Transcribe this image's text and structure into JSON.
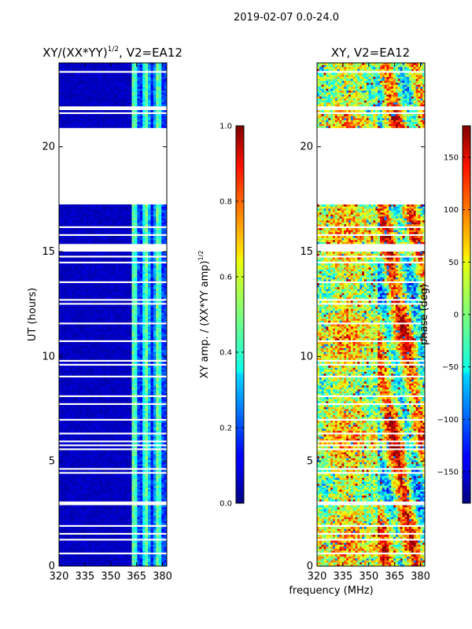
{
  "figure": {
    "suptitle": "2019-02-07 0.0-24.0",
    "xlabel": "frequency (MHz)"
  },
  "chart_data": [
    {
      "type": "heatmap",
      "title": "XY/(XX*YY)^{1/2}, V2=EA12",
      "title_main": "XY/(XX*YY)",
      "title_sup": "1/2",
      "title_rest": ", V2=EA12",
      "xlabel": "frequency (MHz)",
      "ylabel": "UT (hours)",
      "xlim": [
        320,
        382.5
      ],
      "ylim": [
        0,
        24
      ],
      "xticks": [
        320,
        335,
        350,
        365,
        380
      ],
      "yticks": [
        0,
        5,
        10,
        15,
        20
      ],
      "colormap": "jet",
      "colorbar": {
        "label_main": "XY amp. / (XX*YY amp)",
        "label_sup": "1/2",
        "range": [
          0.0,
          1.0
        ],
        "ticks": [
          "0.0",
          "0.2",
          "0.4",
          "0.6",
          "0.8",
          "1.0"
        ],
        "tick_values": [
          0.0,
          0.2,
          0.4,
          0.6,
          0.8,
          1.0
        ]
      },
      "data_gaps_hours": [
        [
          20.9,
          24.0,
          "partial"
        ],
        [
          17.2,
          20.9,
          "full"
        ]
      ]
    },
    {
      "type": "heatmap",
      "title": "XY, V2=EA12",
      "xlabel": "frequency (MHz)",
      "ylabel": "",
      "xlim": [
        320,
        382.5
      ],
      "ylim": [
        0,
        24
      ],
      "xticks": [
        320,
        335,
        350,
        365,
        380
      ],
      "yticks": [
        0,
        5,
        10,
        15,
        20
      ],
      "colormap": "jet",
      "colorbar": {
        "label": "phase (deg)",
        "range": [
          -180,
          180
        ],
        "ticks": [
          "150",
          "100",
          "50",
          "0",
          "−50",
          "−100",
          "−150"
        ],
        "tick_values": [
          150,
          100,
          50,
          0,
          -50,
          -100,
          -150
        ]
      }
    }
  ]
}
